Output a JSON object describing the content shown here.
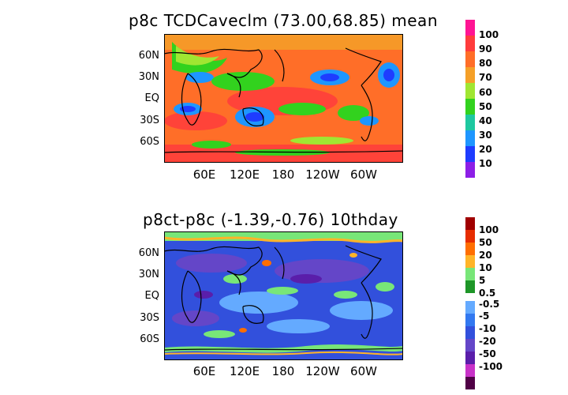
{
  "top_panel": {
    "title": "p8c TCDCaveclm (73.00,68.85) mean",
    "lat_labels": [
      "60N",
      "30N",
      "EQ",
      "30S",
      "60S"
    ],
    "lon_labels": [
      "60E",
      "120E",
      "180",
      "120W",
      "60W"
    ],
    "colorbar": {
      "labels": [
        "100",
        "90",
        "80",
        "70",
        "60",
        "50",
        "40",
        "30",
        "20",
        "10"
      ],
      "colors": [
        "#ff1493",
        "#ff3c3c",
        "#ff6e28",
        "#f5a028",
        "#a0e632",
        "#32d21e",
        "#1ec8a0",
        "#1e96ff",
        "#1e3cff",
        "#8c1ee6"
      ]
    }
  },
  "bottom_panel": {
    "title": "p8ct-p8c (-1.39,-0.76) 10thday",
    "lat_labels": [
      "60N",
      "30N",
      "EQ",
      "30S",
      "60S"
    ],
    "lon_labels": [
      "60E",
      "120E",
      "180",
      "120W",
      "60W"
    ],
    "colorbar": {
      "pos_labels": [
        "100",
        "50",
        "20",
        "10",
        "5",
        "0.5"
      ],
      "neg_labels": [
        "-0.5",
        "-5",
        "-10",
        "-20",
        "-50",
        "-100"
      ],
      "pos_colors": [
        "#a00000",
        "#e62d00",
        "#ff6e00",
        "#ffb428",
        "#78e678",
        "#1e9628"
      ],
      "neg_colors": [
        "#64aaff",
        "#3278f0",
        "#3250dc",
        "#6446c8",
        "#5a1eaa",
        "#c832c8",
        "#500046"
      ]
    }
  }
}
